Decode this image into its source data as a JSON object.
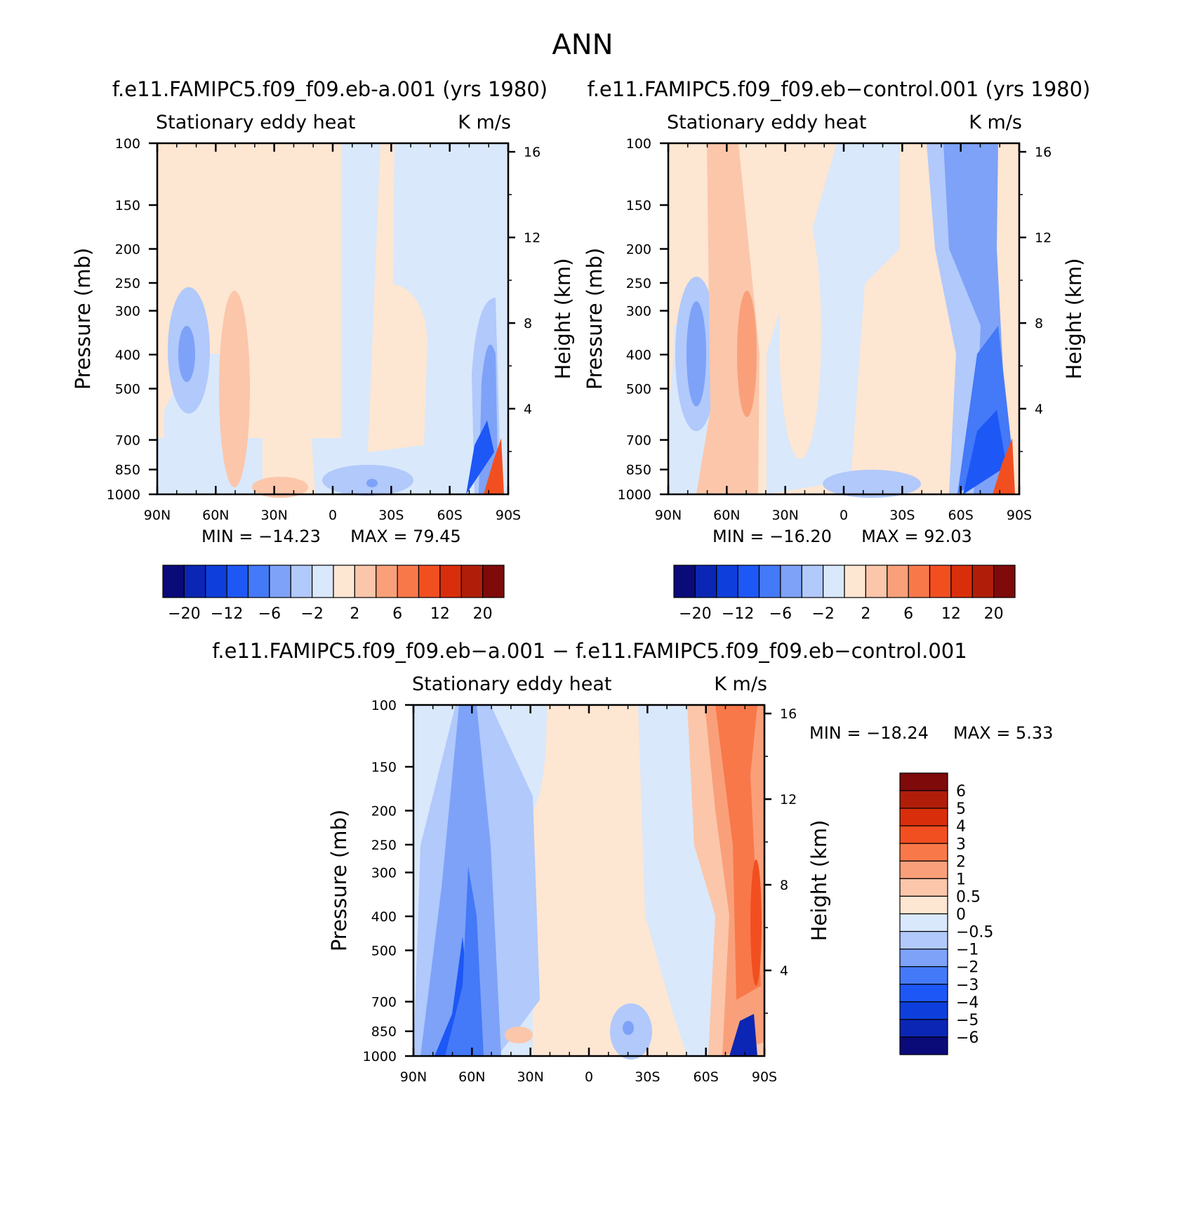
{
  "figure_title": "ANN",
  "colors": {
    "blue_scale": [
      "#0a0a78",
      "#0b26b4",
      "#0e3fdc",
      "#1d57f5",
      "#4479f7",
      "#7da2f8",
      "#b1c9fb",
      "#d9e8fb"
    ],
    "red_scale": [
      "#fde6d2",
      "#fbc6aa",
      "#f9a07a",
      "#f8784a",
      "#f24f21",
      "#d92e0b",
      "#b01e0a",
      "#7e0a0a"
    ]
  },
  "chart_data": [
    {
      "type": "contour",
      "case": "f.e11.FAMIPC5.f09_f09.eb-a.001 (yrs 1980)",
      "variable": "Stationary eddy heat",
      "units": "K m/s",
      "ylabel": "Pressure (mb)",
      "ylabel_right": "Height (km)",
      "x_ticks": [
        "90N",
        "60N",
        "30N",
        "0",
        "30S",
        "60S",
        "90S"
      ],
      "x_values": [
        90,
        60,
        30,
        0,
        -30,
        -60,
        -90
      ],
      "y_ticks": [
        "100",
        "150",
        "200",
        "250",
        "300",
        "400",
        "500",
        "700",
        "850",
        "1000"
      ],
      "y_values": [
        100,
        150,
        200,
        250,
        300,
        400,
        500,
        700,
        850,
        1000
      ],
      "height_ticks": [
        "16",
        "12",
        "8",
        "4"
      ],
      "height_values": [
        16,
        12,
        8,
        4
      ],
      "min_label": "MIN = −14.23",
      "max_label": "MAX =   79.45",
      "min": -14.23,
      "max": 79.45,
      "colorbar_labels": [
        "−20",
        "−12",
        "−6",
        "−2",
        "2",
        "6",
        "12",
        "20"
      ],
      "colorbar_levels": [
        -20,
        -16,
        -12,
        -8,
        -6,
        -4,
        -2,
        0,
        2,
        4,
        6,
        8,
        12,
        16,
        20
      ]
    },
    {
      "type": "contour",
      "case": "f.e11.FAMIPC5.f09_f09.eb−control.001 (yrs 1980)",
      "variable": "Stationary eddy heat",
      "units": "K m/s",
      "ylabel": "Pressure (mb)",
      "ylabel_right": "Height (km)",
      "x_ticks": [
        "90N",
        "60N",
        "30N",
        "0",
        "30S",
        "60S",
        "90S"
      ],
      "x_values": [
        90,
        60,
        30,
        0,
        -30,
        -60,
        -90
      ],
      "y_ticks": [
        "100",
        "150",
        "200",
        "250",
        "300",
        "400",
        "500",
        "700",
        "850",
        "1000"
      ],
      "y_values": [
        100,
        150,
        200,
        250,
        300,
        400,
        500,
        700,
        850,
        1000
      ],
      "height_ticks": [
        "16",
        "12",
        "8",
        "4"
      ],
      "height_values": [
        16,
        12,
        8,
        4
      ],
      "min_label": "MIN = −16.20",
      "max_label": "MAX =   92.03",
      "min": -16.2,
      "max": 92.03,
      "colorbar_labels": [
        "−20",
        "−12",
        "−6",
        "−2",
        "2",
        "6",
        "12",
        "20"
      ],
      "colorbar_levels": [
        -20,
        -16,
        -12,
        -8,
        -6,
        -4,
        -2,
        0,
        2,
        4,
        6,
        8,
        12,
        16,
        20
      ]
    },
    {
      "type": "contour",
      "case": "f.e11.FAMIPC5.f09_f09.eb−a.001 − f.e11.FAMIPC5.f09_f09.eb−control.001",
      "variable": "Stationary eddy heat",
      "units": "K m/s",
      "ylabel": "Pressure (mb)",
      "ylabel_right": "Height (km)",
      "x_ticks": [
        "90N",
        "60N",
        "30N",
        "0",
        "30S",
        "60S",
        "90S"
      ],
      "x_values": [
        90,
        60,
        30,
        0,
        -30,
        -60,
        -90
      ],
      "y_ticks": [
        "100",
        "150",
        "200",
        "250",
        "300",
        "400",
        "500",
        "700",
        "850",
        "1000"
      ],
      "y_values": [
        100,
        150,
        200,
        250,
        300,
        400,
        500,
        700,
        850,
        1000
      ],
      "height_ticks": [
        "16",
        "12",
        "8",
        "4"
      ],
      "height_values": [
        16,
        12,
        8,
        4
      ],
      "min_label": "MIN = −18.24",
      "max_label": "MAX =    5.33",
      "min": -18.24,
      "max": 5.33,
      "colorbar_labels": [
        "6",
        "5",
        "4",
        "3",
        "2",
        "1",
        "0.5",
        "0",
        "−0.5",
        "−1",
        "−2",
        "−3",
        "−4",
        "−5",
        "−6"
      ],
      "colorbar_levels": [
        -6,
        -5,
        -4,
        -3,
        -2,
        -1,
        -0.5,
        0,
        0.5,
        1,
        2,
        3,
        4,
        5,
        6
      ]
    }
  ]
}
